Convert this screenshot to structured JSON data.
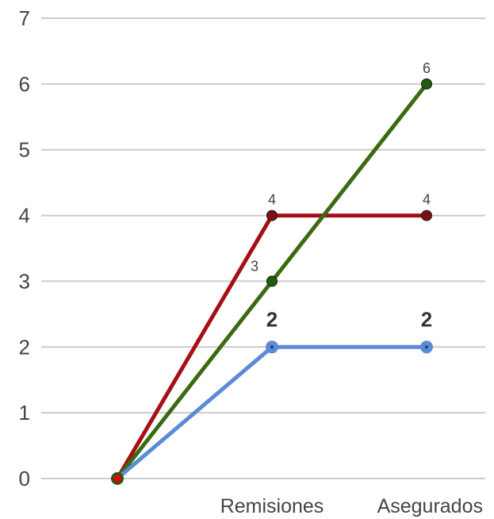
{
  "chart_data": {
    "type": "line",
    "categories": [
      "",
      "Remisiones",
      "Asegurados"
    ],
    "y_ticks": [
      "0",
      "1",
      "2",
      "3",
      "4",
      "5",
      "6",
      "7"
    ],
    "ylim": [
      0,
      7
    ],
    "grid": true,
    "legend": "none",
    "series": [
      {
        "color": "#a50f15",
        "point_color": "#7a1010",
        "values": [
          0,
          4,
          4
        ],
        "labels": [
          "",
          "4",
          "4"
        ],
        "label_style": "small"
      },
      {
        "color": "#3a6b12",
        "point_color": "#1f5c0b",
        "values": [
          0,
          3,
          6
        ],
        "labels": [
          "",
          "3",
          "6"
        ],
        "label_style": "small"
      },
      {
        "color": "#5b8ad6",
        "point_color": "#5b8ad6",
        "values": [
          0,
          2,
          2
        ],
        "labels": [
          "",
          "2",
          "2"
        ],
        "label_style": "bold"
      }
    ],
    "origin_point_color": "#e8000b"
  }
}
